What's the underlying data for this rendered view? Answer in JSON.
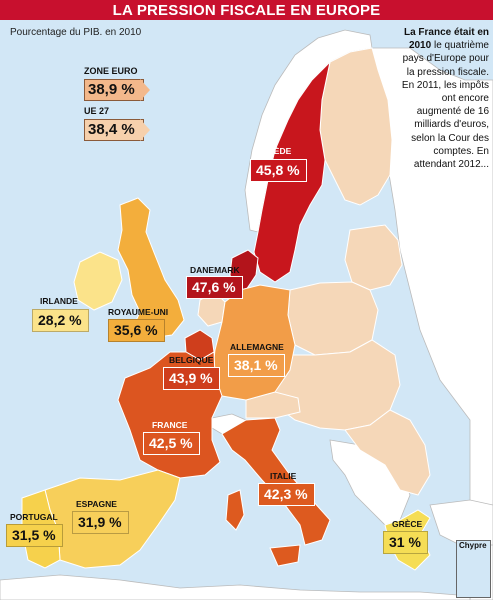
{
  "title": "LA PRESSION FISCALE EN EUROPE",
  "subtitle": "Pourcentage du PIB. en 2010",
  "side_text": {
    "lead": "La France était en 2010",
    "body": "le quatrième pays d'Europe pour la pression fiscale. En 2011, les impôts ont encore augmenté de 16 milliards d'euros, selon la Cour des comptes. En attendant 2012..."
  },
  "summary": {
    "zone_euro": {
      "label": "ZONE EURO",
      "value": "38,9 %"
    },
    "ue27": {
      "label": "UE 27",
      "value": "38,4 %"
    }
  },
  "countries": {
    "suede": {
      "label": "SUÈDE",
      "value": "45,8 %",
      "color": "#c8161d"
    },
    "danemark": {
      "label": "DANEMARK",
      "value": "47,6 %",
      "color": "#b3141b"
    },
    "irlande": {
      "label": "IRLANDE",
      "value": "28,2 %",
      "color": "#fbe38a"
    },
    "royaume_uni": {
      "label": "ROYAUME-UNI",
      "value": "35,6 %",
      "color": "#f3ae3c"
    },
    "belgique": {
      "label": "BELGIQUE",
      "value": "43,9 %",
      "color": "#cf3e1c"
    },
    "allemagne": {
      "label": "ALLEMAGNE",
      "value": "38,1 %",
      "color": "#f29d48"
    },
    "france": {
      "label": "FRANCE",
      "value": "42,5 %",
      "color": "#dc5520"
    },
    "italie": {
      "label": "ITALIE",
      "value": "42,3 %",
      "color": "#dd5a1f"
    },
    "espagne": {
      "label": "ESPAGNE",
      "value": "31,9 %",
      "color": "#f7cf5a"
    },
    "portugal": {
      "label": "PORTUGAL",
      "value": "31,5 %",
      "color": "#f6d14c"
    },
    "grece": {
      "label": "GRÈCE",
      "value": "31 %",
      "color": "#f5dd55"
    }
  },
  "cyprus_label": "Chypre",
  "colors": {
    "sea": "#d2e7f6",
    "non_labeled_land": "#f5d7b8",
    "non_eu_land": "#ffffff",
    "title_bar": "#c8102e"
  }
}
